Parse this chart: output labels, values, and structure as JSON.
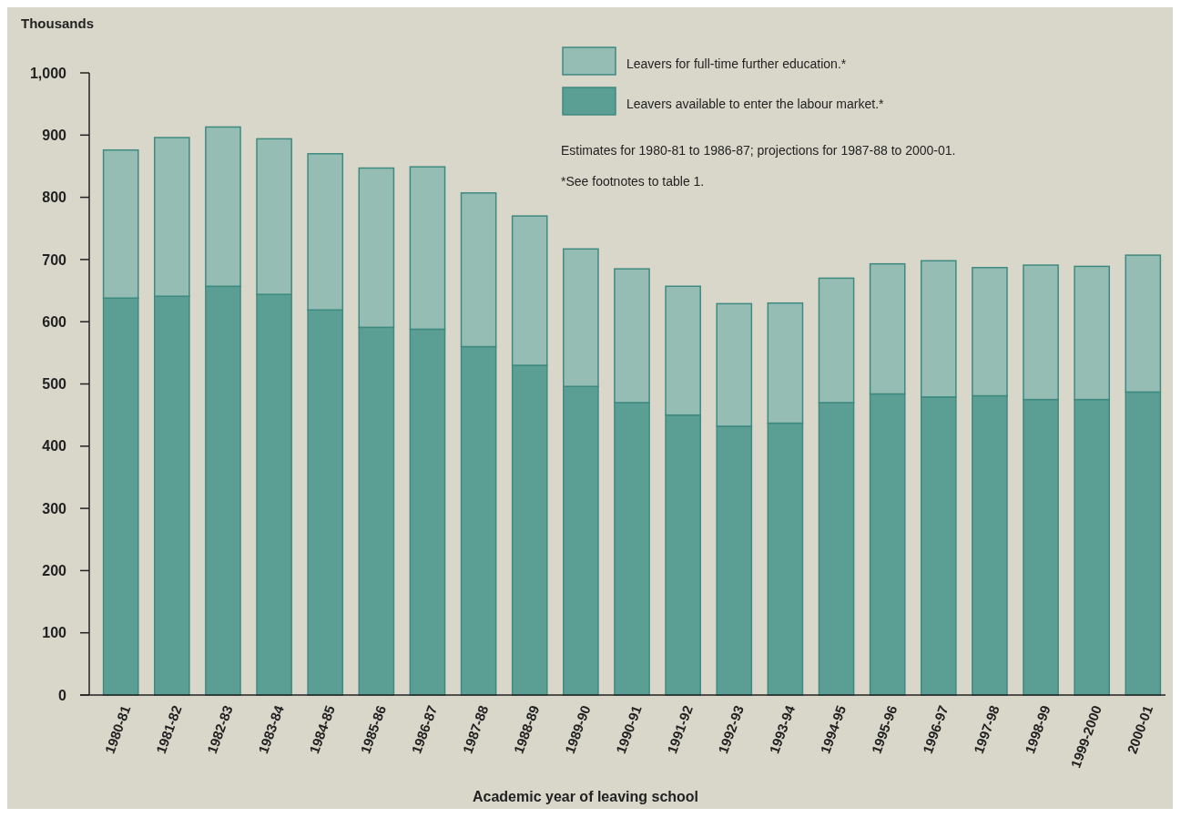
{
  "chart_data": {
    "type": "bar",
    "stacked": true,
    "ylabel": "Thousands",
    "xlabel": "Academic year of leaving school",
    "categories": [
      "1980-81",
      "1981-82",
      "1982-83",
      "1983-84",
      "1984-85",
      "1985-86",
      "1986-87",
      "1987-88",
      "1988-89",
      "1989-90",
      "1990-91",
      "1991-92",
      "1992-93",
      "1993-94",
      "1994-95",
      "1995-96",
      "1996-97",
      "1997-98",
      "1998-99",
      "1999-2000",
      "2000-01"
    ],
    "series": [
      {
        "name": "Leavers available to enter the labour market.*",
        "color": "#5b9e94",
        "values": [
          638,
          641,
          657,
          644,
          619,
          591,
          588,
          560,
          530,
          496,
          470,
          450,
          432,
          437,
          470,
          484,
          479,
          481,
          475,
          475,
          487
        ]
      },
      {
        "name": "Leavers for full-time further education.*",
        "color": "#95bdb3",
        "values": [
          238,
          255,
          256,
          250,
          251,
          256,
          261,
          247,
          240,
          221,
          215,
          207,
          197,
          193,
          200,
          209,
          219,
          206,
          216,
          214,
          220
        ]
      }
    ],
    "ylim": [
      0,
      1000
    ],
    "yticks": [
      0,
      100,
      200,
      300,
      400,
      500,
      600,
      700,
      800,
      900,
      {
        "value": 1000,
        "label": "1,000"
      }
    ],
    "legend": "top right",
    "annotations": [
      "Estimates for 1980-81 to 1986-87; projections for 1987-88 to 2000-01.",
      "*See footnotes to table 1."
    ]
  }
}
